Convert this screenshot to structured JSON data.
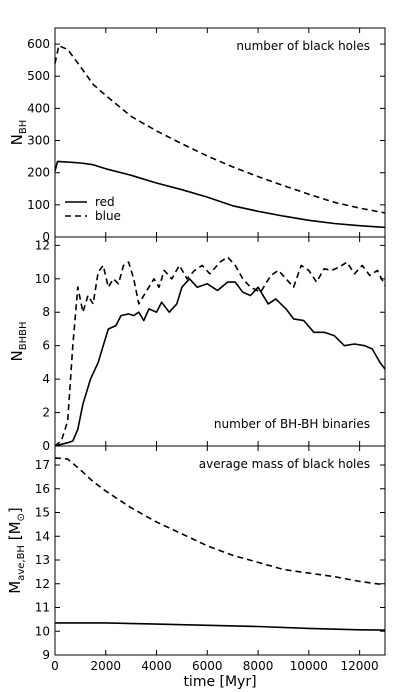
{
  "chart_data": [
    {
      "type": "line",
      "annotation": "number of black holes",
      "ylabel_main": "N",
      "ylabel_sub": "BH",
      "xlim": [
        0,
        13000
      ],
      "ylim": [
        0,
        650
      ],
      "yticks": [
        0,
        100,
        200,
        300,
        400,
        500,
        600
      ],
      "legend": {
        "placement": "lower-left",
        "entries": [
          {
            "label": "red",
            "style": "solid"
          },
          {
            "label": "blue",
            "style": "dashed"
          }
        ]
      },
      "series": [
        {
          "name": "red",
          "style": "solid",
          "points": [
            [
              0,
              205
            ],
            [
              100,
              235
            ],
            [
              500,
              233
            ],
            [
              1000,
              230
            ],
            [
              1500,
              225
            ],
            [
              2000,
              212
            ],
            [
              3000,
              192
            ],
            [
              4000,
              168
            ],
            [
              5000,
              147
            ],
            [
              6000,
              124
            ],
            [
              7000,
              97
            ],
            [
              8000,
              80
            ],
            [
              9000,
              65
            ],
            [
              10000,
              52
            ],
            [
              11000,
              42
            ],
            [
              12000,
              35
            ],
            [
              13000,
              30
            ]
          ]
        },
        {
          "name": "blue",
          "style": "dashed",
          "points": [
            [
              0,
              540
            ],
            [
              150,
              595
            ],
            [
              500,
              583
            ],
            [
              1000,
              530
            ],
            [
              1500,
              475
            ],
            [
              2000,
              440
            ],
            [
              3000,
              375
            ],
            [
              4000,
              330
            ],
            [
              5000,
              290
            ],
            [
              6000,
              252
            ],
            [
              7000,
              218
            ],
            [
              8000,
              188
            ],
            [
              9000,
              160
            ],
            [
              10000,
              133
            ],
            [
              11000,
              108
            ],
            [
              12000,
              90
            ],
            [
              13000,
              75
            ]
          ]
        }
      ]
    },
    {
      "type": "line",
      "annotation": "number of BH-BH binaries",
      "ylabel_main": "N",
      "ylabel_sub": "BHBH",
      "xlim": [
        0,
        13000
      ],
      "ylim": [
        0,
        12.5
      ],
      "yticks": [
        0,
        2,
        4,
        6,
        8,
        10,
        12
      ],
      "series": [
        {
          "name": "red",
          "style": "solid",
          "points": [
            [
              0,
              0
            ],
            [
              500,
              0.2
            ],
            [
              700,
              0.3
            ],
            [
              900,
              1
            ],
            [
              1100,
              2.5
            ],
            [
              1400,
              4
            ],
            [
              1700,
              5
            ],
            [
              1900,
              6
            ],
            [
              2100,
              7
            ],
            [
              2400,
              7.2
            ],
            [
              2600,
              7.8
            ],
            [
              2900,
              7.9
            ],
            [
              3100,
              7.8
            ],
            [
              3300,
              8
            ],
            [
              3500,
              7.5
            ],
            [
              3700,
              8.2
            ],
            [
              4000,
              8
            ],
            [
              4200,
              8.6
            ],
            [
              4500,
              8
            ],
            [
              4800,
              8.5
            ],
            [
              5000,
              9.5
            ],
            [
              5300,
              10
            ],
            [
              5600,
              9.5
            ],
            [
              6000,
              9.7
            ],
            [
              6400,
              9.3
            ],
            [
              6800,
              9.8
            ],
            [
              7100,
              9.8
            ],
            [
              7400,
              9.2
            ],
            [
              7700,
              9
            ],
            [
              8000,
              9.5
            ],
            [
              8400,
              8.5
            ],
            [
              8700,
              8.8
            ],
            [
              9100,
              8.2
            ],
            [
              9400,
              7.6
            ],
            [
              9800,
              7.5
            ],
            [
              10200,
              6.8
            ],
            [
              10600,
              6.8
            ],
            [
              11000,
              6.6
            ],
            [
              11400,
              6
            ],
            [
              11800,
              6.1
            ],
            [
              12200,
              6
            ],
            [
              12500,
              5.8
            ],
            [
              12800,
              5
            ],
            [
              13000,
              4.6
            ]
          ]
        },
        {
          "name": "blue",
          "style": "dashed",
          "points": [
            [
              0,
              0
            ],
            [
              250,
              0.3
            ],
            [
              500,
              1.5
            ],
            [
              700,
              6
            ],
            [
              900,
              9.5
            ],
            [
              1100,
              8
            ],
            [
              1300,
              9
            ],
            [
              1500,
              8.5
            ],
            [
              1700,
              10.4
            ],
            [
              1900,
              10.8
            ],
            [
              2100,
              9.5
            ],
            [
              2300,
              10
            ],
            [
              2500,
              9.7
            ],
            [
              2700,
              10.8
            ],
            [
              2900,
              11
            ],
            [
              3100,
              10
            ],
            [
              3300,
              8.5
            ],
            [
              3500,
              9
            ],
            [
              3700,
              9.5
            ],
            [
              3900,
              10
            ],
            [
              4100,
              9.5
            ],
            [
              4300,
              10.5
            ],
            [
              4600,
              10
            ],
            [
              4900,
              10.8
            ],
            [
              5200,
              10
            ],
            [
              5500,
              10.5
            ],
            [
              5800,
              10.8
            ],
            [
              6100,
              10.3
            ],
            [
              6500,
              11
            ],
            [
              6800,
              11.3
            ],
            [
              7100,
              10.8
            ],
            [
              7400,
              10
            ],
            [
              7700,
              9.5
            ],
            [
              8100,
              9.2
            ],
            [
              8500,
              10.2
            ],
            [
              8800,
              10.5
            ],
            [
              9100,
              10
            ],
            [
              9400,
              9.5
            ],
            [
              9700,
              10.8
            ],
            [
              10000,
              10.5
            ],
            [
              10300,
              9.8
            ],
            [
              10600,
              10.6
            ],
            [
              10900,
              10.5
            ],
            [
              11200,
              10.7
            ],
            [
              11500,
              11
            ],
            [
              11800,
              10.3
            ],
            [
              12100,
              10.8
            ],
            [
              12400,
              10.2
            ],
            [
              12700,
              10.5
            ],
            [
              13000,
              9.6
            ]
          ]
        }
      ]
    },
    {
      "type": "line",
      "annotation": "average mass of black holes",
      "ylabel_main": "M",
      "ylabel_sub": "ave,BH",
      "ylabel_unit": "[M",
      "xlabel": "time [Myr]",
      "xlim": [
        0,
        13000
      ],
      "xticks": [
        0,
        2000,
        4000,
        6000,
        8000,
        10000,
        12000
      ],
      "ylim": [
        9,
        17.8
      ],
      "yticks": [
        9,
        10,
        11,
        12,
        13,
        14,
        15,
        16,
        17
      ],
      "series": [
        {
          "name": "red",
          "style": "solid",
          "points": [
            [
              0,
              10.35
            ],
            [
              2000,
              10.35
            ],
            [
              4000,
              10.3
            ],
            [
              6000,
              10.25
            ],
            [
              8000,
              10.2
            ],
            [
              10000,
              10.12
            ],
            [
              12000,
              10.06
            ],
            [
              13000,
              10.05
            ]
          ]
        },
        {
          "name": "blue",
          "style": "dashed",
          "points": [
            [
              0,
              17.3
            ],
            [
              500,
              17.25
            ],
            [
              1000,
              16.8
            ],
            [
              1500,
              16.3
            ],
            [
              2000,
              15.9
            ],
            [
              3000,
              15.2
            ],
            [
              4000,
              14.6
            ],
            [
              5000,
              14.1
            ],
            [
              6000,
              13.6
            ],
            [
              7000,
              13.2
            ],
            [
              8000,
              12.9
            ],
            [
              9000,
              12.6
            ],
            [
              10000,
              12.45
            ],
            [
              11000,
              12.3
            ],
            [
              12000,
              12.1
            ],
            [
              13000,
              11.95
            ]
          ]
        }
      ]
    }
  ]
}
